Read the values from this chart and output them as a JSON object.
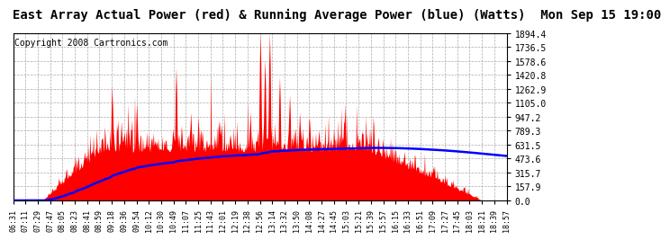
{
  "title": "East Array Actual Power (red) & Running Average Power (blue) (Watts)  Mon Sep 15 19:00",
  "copyright": "Copyright 2008 Cartronics.com",
  "ymax": 1894.4,
  "yticks": [
    0.0,
    157.9,
    315.7,
    473.6,
    631.5,
    789.3,
    947.2,
    1105.0,
    1262.9,
    1420.8,
    1578.6,
    1736.5,
    1894.4
  ],
  "xtick_labels": [
    "06:31",
    "07:11",
    "07:29",
    "07:47",
    "08:05",
    "08:23",
    "08:41",
    "08:59",
    "09:18",
    "09:36",
    "09:54",
    "10:12",
    "10:30",
    "10:49",
    "11:07",
    "11:25",
    "11:43",
    "12:01",
    "12:19",
    "12:38",
    "12:56",
    "13:14",
    "13:32",
    "13:50",
    "14:08",
    "14:27",
    "14:45",
    "15:03",
    "15:21",
    "15:39",
    "15:57",
    "16:15",
    "16:33",
    "16:51",
    "17:09",
    "17:27",
    "17:45",
    "18:03",
    "18:21",
    "18:39",
    "18:57"
  ],
  "background_color": "#ffffff",
  "red_color": "#ff0000",
  "blue_color": "#0000ff",
  "grid_color": "#aaaaaa",
  "title_fontsize": 10,
  "copyright_fontsize": 7
}
